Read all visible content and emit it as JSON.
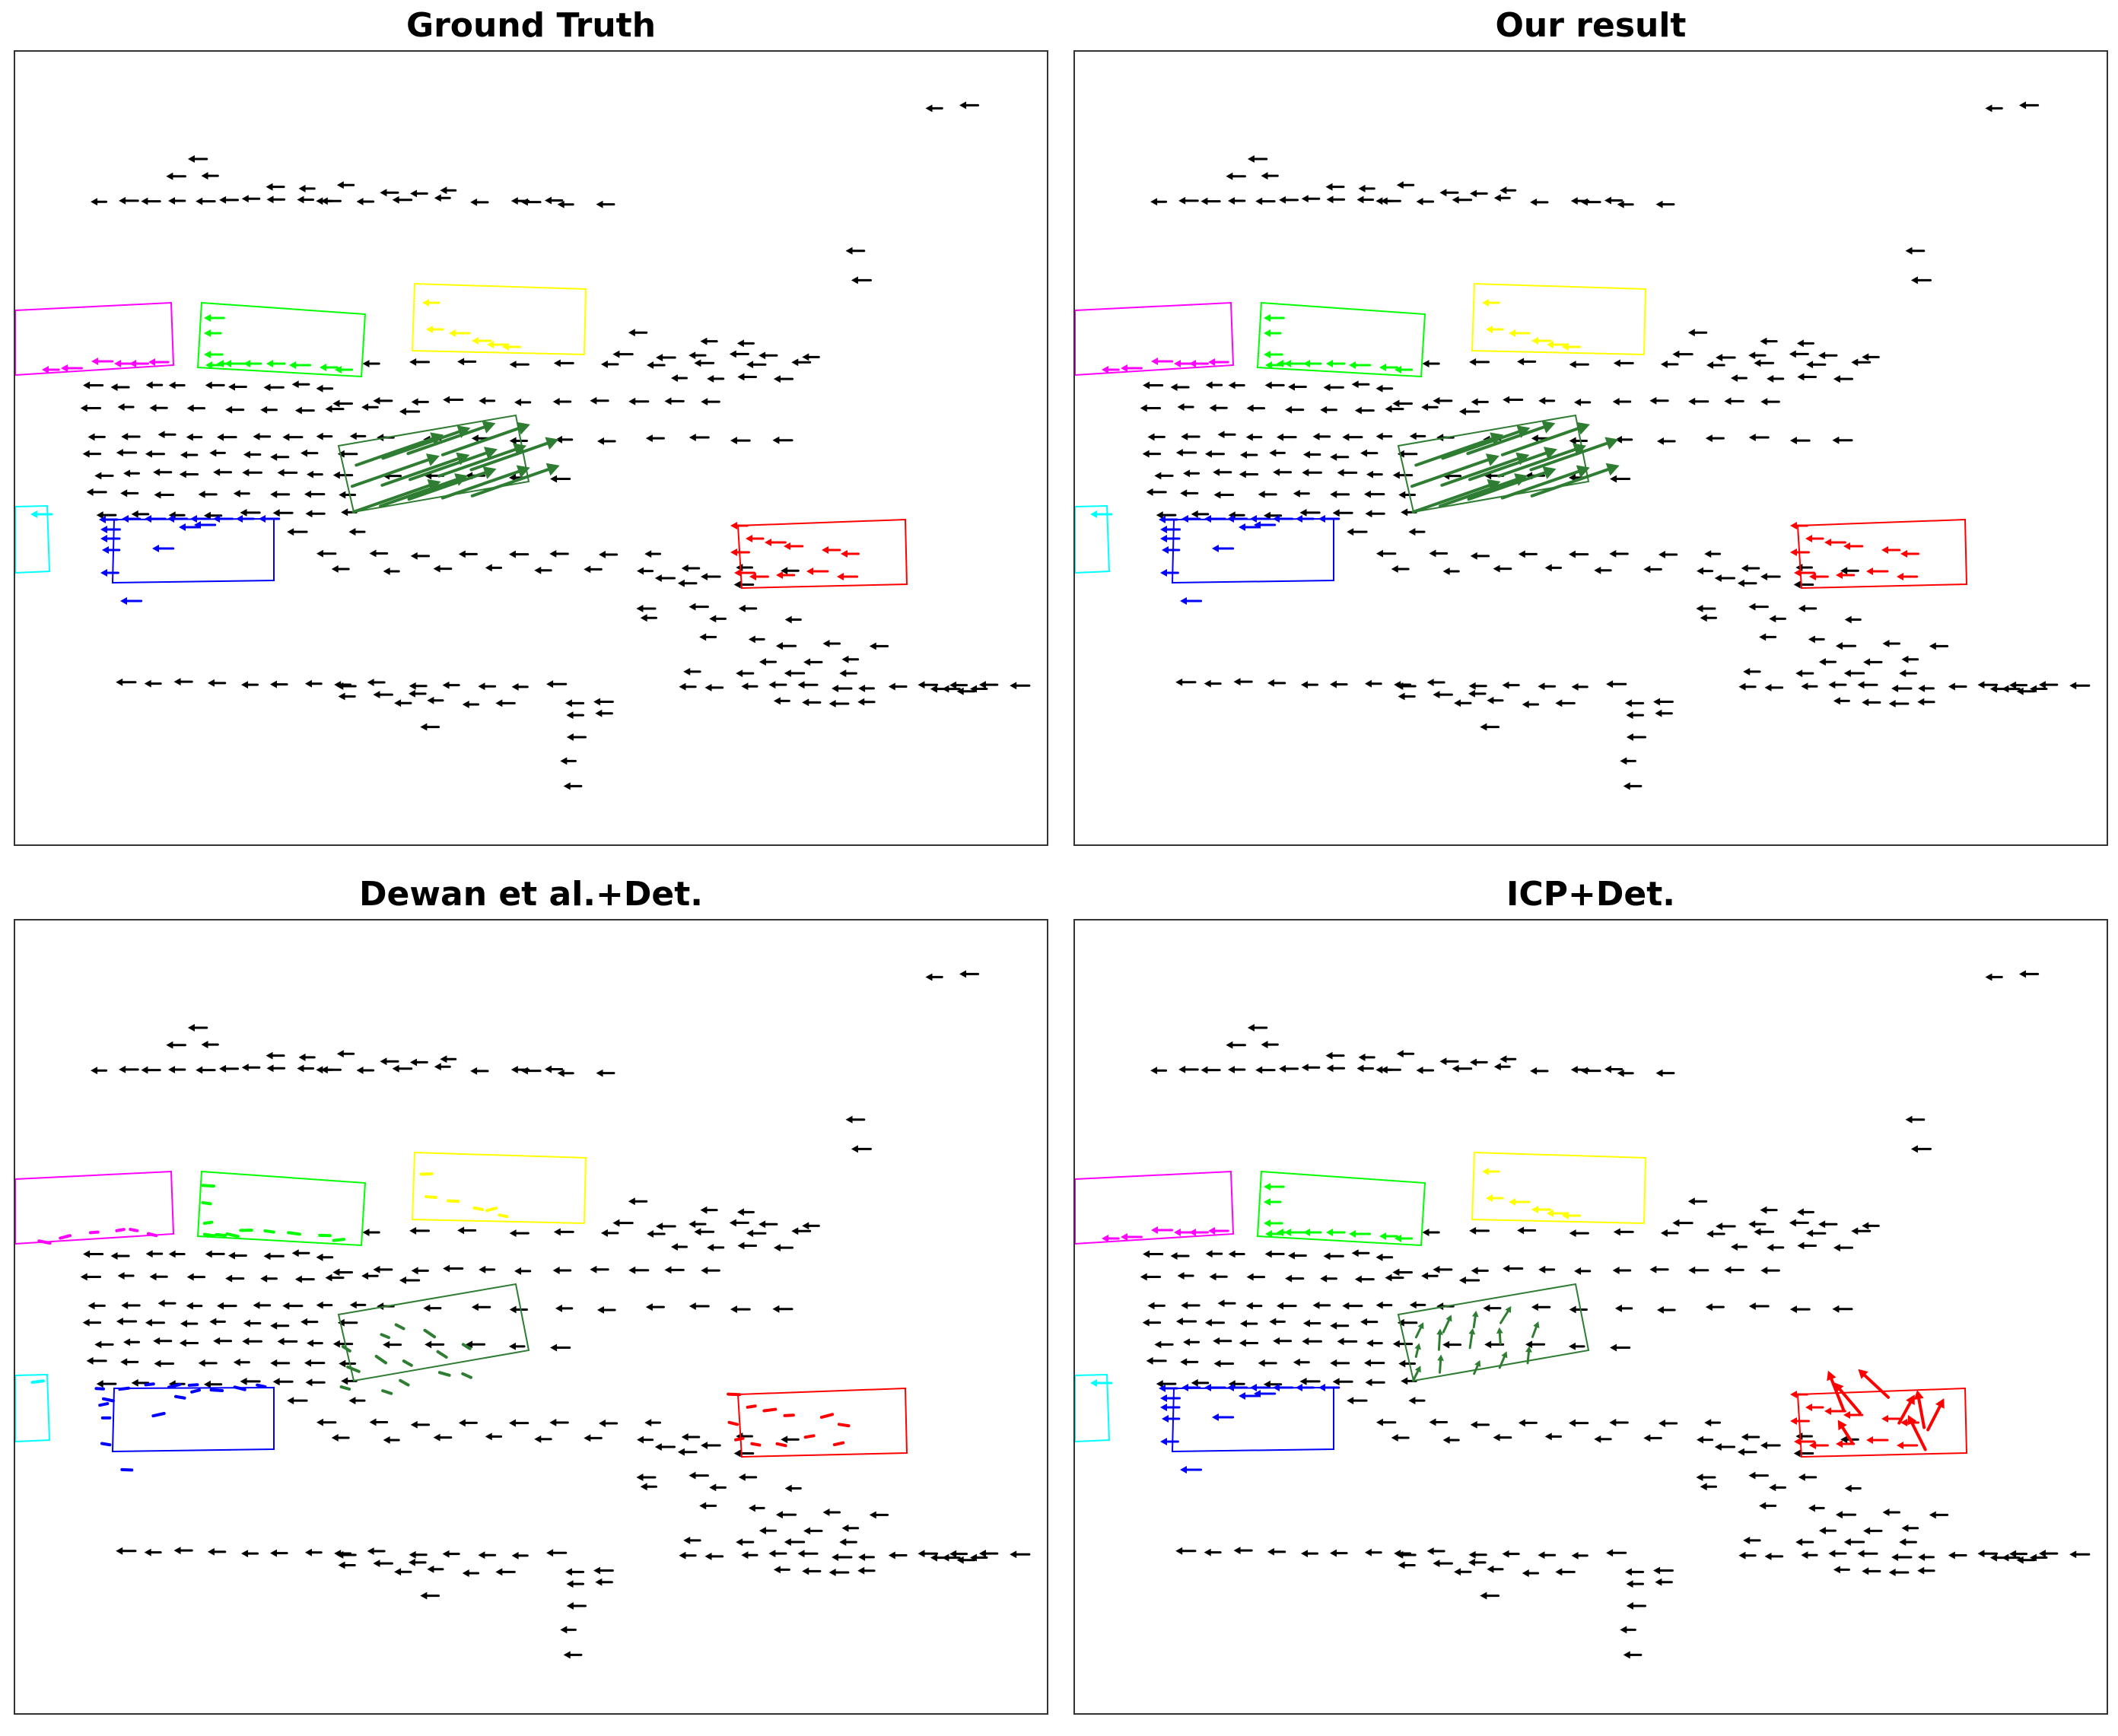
{
  "figure": {
    "panels": [
      {
        "id": "ground-truth",
        "title": "Ground Truth",
        "object_arrow_mode": "consistent-left",
        "car_arrow_mode": "long-ne"
      },
      {
        "id": "our-result",
        "title": "Our result",
        "object_arrow_mode": "consistent-left",
        "car_arrow_mode": "long-ne"
      },
      {
        "id": "dewan",
        "title": "Dewan et al.+Det.",
        "object_arrow_mode": "short-dashes",
        "car_arrow_mode": "short-dashes"
      },
      {
        "id": "icp",
        "title": "ICP+Det.",
        "object_arrow_mode": "consistent-left",
        "car_arrow_mode": "scattered-ne"
      }
    ],
    "colors": {
      "background_points": "#000000",
      "magenta": "#ff00ff",
      "green": "#00ff00",
      "yellow": "#ffff00",
      "dark_green": "#2e7d32",
      "cyan": "#00ffff",
      "blue": "#0000ff",
      "red": "#ff0000",
      "frame": "#333333"
    },
    "icon_names": [
      "flow-arrow",
      "bounding-box"
    ]
  }
}
